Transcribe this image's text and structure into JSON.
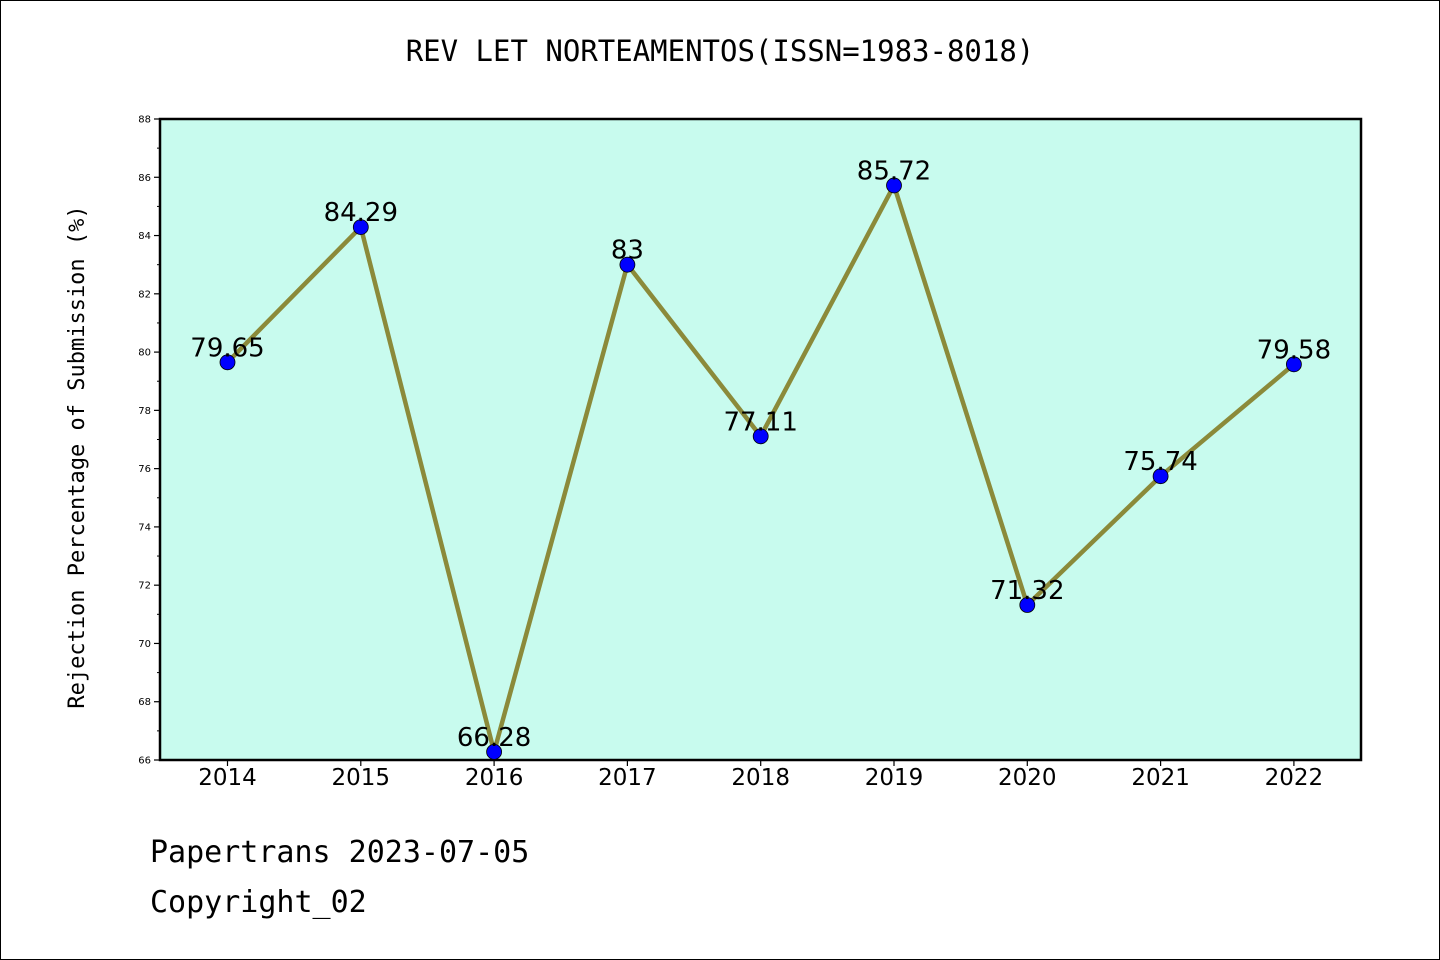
{
  "chart_data": {
    "type": "line",
    "title": "REV LET NORTEAMENTOS(ISSN=1983-8018)",
    "xlabel": "",
    "ylabel": "Rejection Percentage of Submission (%)",
    "categories": [
      "2014",
      "2015",
      "2016",
      "2017",
      "2018",
      "2019",
      "2020",
      "2021",
      "2022"
    ],
    "series": [
      {
        "values": [
          79.65,
          84.29,
          66.28,
          83,
          77.11,
          85.72,
          71.32,
          75.74,
          79.58
        ]
      }
    ],
    "data_labels": [
      "79.65",
      "84.29",
      "66.28",
      "83",
      "77.11",
      "85.72",
      "71.32",
      "75.74",
      "79.58"
    ],
    "ylim": [
      66,
      88
    ],
    "yticks": [
      "66",
      "68",
      "70",
      "72",
      "74",
      "76",
      "78",
      "80",
      "82",
      "84",
      "86",
      "88"
    ],
    "grid": false,
    "colors": {
      "plot_background": "#c8fbee",
      "line": "#8b8a3a",
      "marker": "#0000ff"
    }
  },
  "footer": {
    "line1": "Papertrans 2023-07-05",
    "line2": "Copyright_02"
  }
}
